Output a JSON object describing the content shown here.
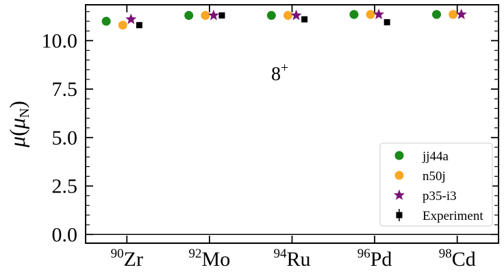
{
  "chart_data": {
    "type": "scatter",
    "title": "",
    "xlabel": "",
    "ylabel": "μ(μN)",
    "ylabel_symbol": "μ",
    "ylabel_unit_symbol": "μ",
    "ylabel_unit_subscript": "N",
    "ylim": [
      -0.45,
      11.85
    ],
    "yticks": [
      "0.0",
      "2.5",
      "5.0",
      "7.5",
      "10.0"
    ],
    "ytick_values": [
      0.0,
      2.5,
      5.0,
      7.5,
      10.0
    ],
    "categories": [
      {
        "mass": "90",
        "element": "Zr"
      },
      {
        "mass": "92",
        "element": "Mo"
      },
      {
        "mass": "94",
        "element": "Ru"
      },
      {
        "mass": "96",
        "element": "Pd"
      },
      {
        "mass": "98",
        "element": "Cd"
      }
    ],
    "reference_line_y": 0.0,
    "annotation": {
      "base": "8",
      "sup": "+"
    },
    "legend_position": "lower-right",
    "series": [
      {
        "name": "jj44a",
        "marker": "circle",
        "color": "#1a8a1a",
        "values": [
          11.0,
          11.3,
          11.3,
          11.35,
          11.35
        ]
      },
      {
        "name": "n50j",
        "marker": "circle",
        "color": "#f9a825",
        "values": [
          10.8,
          11.3,
          11.3,
          11.35,
          11.35
        ]
      },
      {
        "name": "p35-i3",
        "marker": "star",
        "color": "#7a1278",
        "values": [
          11.1,
          11.3,
          11.3,
          11.35,
          11.35
        ]
      },
      {
        "name": "Experiment",
        "marker": "square",
        "color": "#000000",
        "values": [
          10.8,
          11.3,
          11.1,
          10.95,
          null
        ]
      }
    ]
  }
}
